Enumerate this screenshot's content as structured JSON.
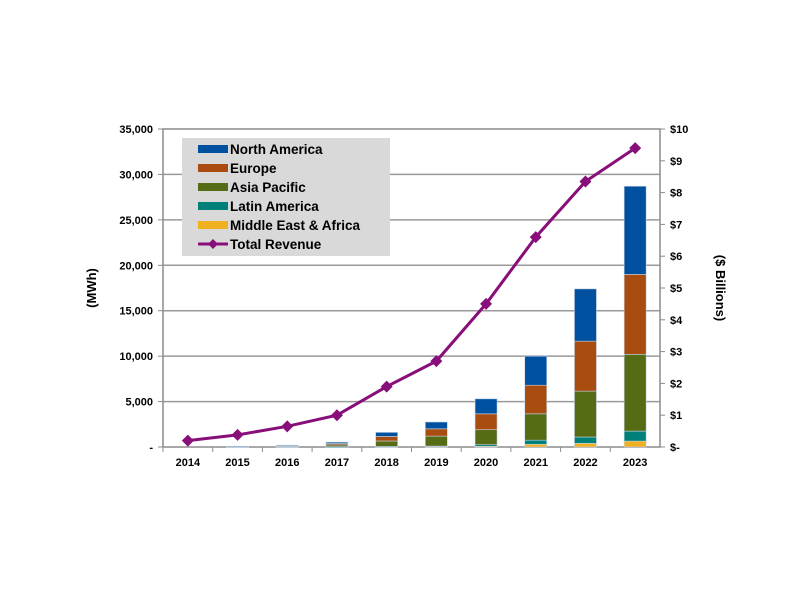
{
  "chart_data": {
    "type": "bar",
    "subtype": "stacked-bar-with-line",
    "title": "",
    "xlabel": "",
    "ylabel": "(MWh)",
    "y2label": "($ Billions)",
    "ylim": [
      0,
      35000
    ],
    "y2lim": [
      0,
      10
    ],
    "grid": true,
    "legend_position": "top-left",
    "categories": [
      "2014",
      "2015",
      "2016",
      "2017",
      "2018",
      "2019",
      "2020",
      "2021",
      "2022",
      "2023"
    ],
    "yticks": [
      "-",
      "5,000",
      "10,000",
      "15,000",
      "20,000",
      "25,000",
      "30,000",
      "35,000"
    ],
    "y2ticks": [
      "$-",
      "$1",
      "$2",
      "$3",
      "$4",
      "$5",
      "$6",
      "$7",
      "$8",
      "$9",
      "$10"
    ],
    "series": [
      {
        "name": "Middle East & Africa",
        "type": "bar",
        "axis": "left",
        "color": "#F0B020",
        "values": [
          0,
          0,
          5,
          10,
          20,
          30,
          80,
          300,
          400,
          650
        ]
      },
      {
        "name": "Latin America",
        "type": "bar",
        "axis": "left",
        "color": "#00807A",
        "values": [
          0,
          0,
          10,
          20,
          40,
          70,
          170,
          450,
          700,
          1100
        ]
      },
      {
        "name": "Asia Pacific",
        "type": "bar",
        "axis": "left",
        "color": "#556B14",
        "values": [
          0,
          20,
          60,
          200,
          600,
          1100,
          1650,
          2900,
          5050,
          8450
        ]
      },
      {
        "name": "Europe",
        "type": "bar",
        "axis": "left",
        "color": "#A84C10",
        "values": [
          0,
          30,
          60,
          150,
          500,
          800,
          1750,
          3150,
          5500,
          8800
        ]
      },
      {
        "name": "North America",
        "type": "bar",
        "axis": "left",
        "color": "#0050A0",
        "values": [
          0,
          30,
          65,
          150,
          450,
          750,
          1650,
          3200,
          5750,
          9700
        ]
      },
      {
        "name": "Total Revenue",
        "type": "line",
        "axis": "right",
        "color": "#880E7A",
        "values": [
          0.2,
          0.38,
          0.65,
          1.0,
          1.9,
          2.7,
          4.5,
          6.6,
          8.35,
          9.4
        ]
      }
    ],
    "legend_order": [
      "North America",
      "Europe",
      "Asia Pacific",
      "Latin America",
      "Middle East & Africa",
      "Total Revenue"
    ]
  }
}
